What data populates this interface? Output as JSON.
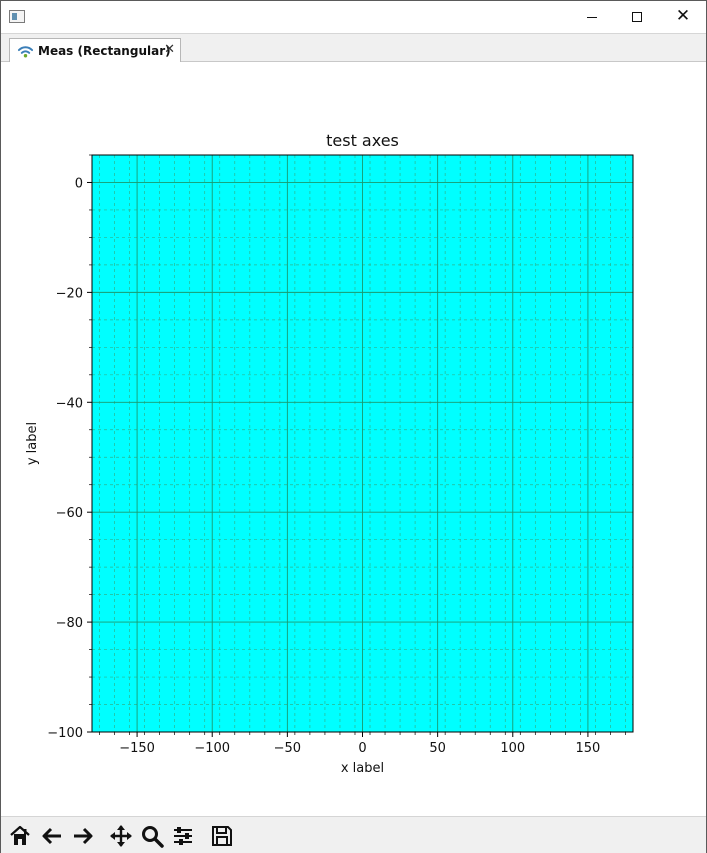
{
  "window": {
    "icon": "app-window-icon",
    "controls": {
      "minimize_icon": "minimize-icon",
      "maximize_icon": "maximize-icon",
      "close_icon": "close-icon",
      "close_glyph": "✕"
    }
  },
  "tab": {
    "label": "Meas (Rectangular)",
    "icon": "wifi-icon",
    "close_icon": "tab-close-icon",
    "close_glyph": "✕"
  },
  "plot": {
    "background_color": "#00ffff",
    "major_grid_color": "#1a9a6e",
    "minor_grid_color": "#2bb58f",
    "chart_data": {
      "type": "line",
      "title": "test axes",
      "xlabel": "x label",
      "ylabel": "y label",
      "xlim": [
        -180,
        180
      ],
      "ylim": [
        -100,
        5
      ],
      "xticks": [
        -150,
        -100,
        -50,
        0,
        50,
        100,
        150
      ],
      "yticks": [
        0,
        -20,
        -40,
        -60,
        -80,
        -100
      ],
      "xtick_labels": [
        "−150",
        "−100",
        "−50",
        "0",
        "50",
        "100",
        "150"
      ],
      "ytick_labels": [
        "0",
        "−20",
        "−40",
        "−60",
        "−80",
        "−100"
      ],
      "grid": true,
      "minor_grid": true,
      "series": []
    }
  },
  "toolbar": {
    "tools": [
      {
        "name": "home-icon"
      },
      {
        "name": "back-arrow-icon"
      },
      {
        "name": "forward-arrow-icon"
      },
      {
        "name": "pan-icon"
      },
      {
        "name": "zoom-icon"
      },
      {
        "name": "configure-subplots-icon"
      },
      {
        "name": "save-icon"
      }
    ]
  }
}
